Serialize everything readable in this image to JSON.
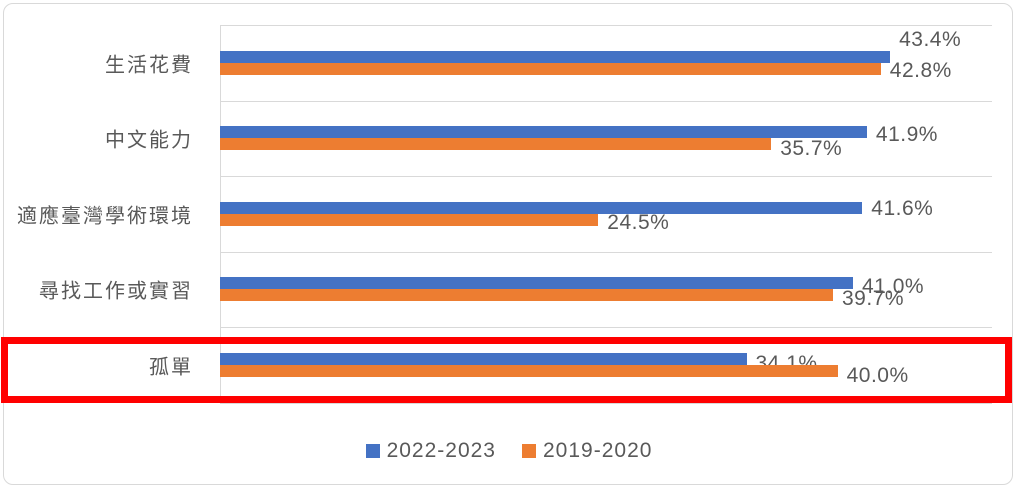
{
  "chart_data": {
    "type": "bar",
    "orientation": "horizontal",
    "title": "",
    "categories": [
      "生活花費",
      "中文能力",
      "適應臺灣學術環境",
      "尋找工作或實習",
      "孤單"
    ],
    "series": [
      {
        "name": "2022-2023",
        "color": "#4472C4",
        "values": [
          43.4,
          41.9,
          41.6,
          41.0,
          34.1
        ],
        "labels": [
          "43.4%",
          "41.9%",
          "41.6%",
          "41.0%",
          "34.1%"
        ]
      },
      {
        "name": "2019-2020",
        "color": "#ED7D31",
        "values": [
          42.8,
          35.7,
          24.5,
          39.7,
          40.0
        ],
        "labels": [
          "42.8%",
          "35.7%",
          "24.5%",
          "39.7%",
          "40.0%"
        ]
      }
    ],
    "value_axis": {
      "min": 0,
      "max": 50,
      "tick_labels_visible": false
    },
    "grid": "horizontal category separators",
    "gridline_color": "#D9D9D9",
    "label_color": "#595959",
    "legend_position": "bottom",
    "legend_entries": [
      "2022-2023",
      "2019-2020"
    ],
    "highlight": {
      "category": "孤單",
      "shape": "rectangle",
      "border_color": "#FF0000",
      "note": "thick red rectangle drawn around the bottom category row"
    }
  }
}
